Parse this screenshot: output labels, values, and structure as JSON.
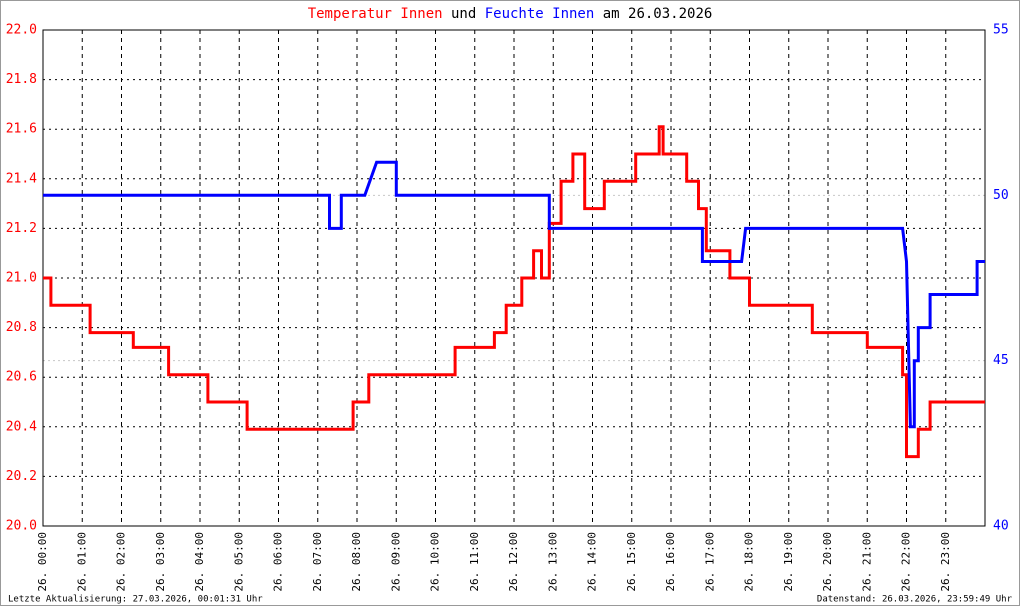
{
  "chart_data": {
    "type": "line",
    "title_join": "und",
    "title_date": "am 26.03.2026",
    "series": [
      {
        "name": "Temperatur Innen",
        "color": "#ff0000",
        "x": [
          0,
          0.2,
          0.2,
          1.2,
          1.2,
          2.3,
          2.3,
          3.2,
          3.2,
          4.2,
          4.2,
          5.2,
          5.2,
          7.9,
          7.9,
          8.3,
          8.3,
          10.5,
          10.5,
          11.5,
          11.5,
          11.8,
          11.8,
          12.2,
          12.2,
          12.5,
          12.5,
          12.7,
          12.7,
          12.9,
          12.9,
          13.2,
          13.2,
          13.5,
          13.5,
          13.8,
          13.8,
          14.3,
          14.3,
          15.1,
          15.1,
          15.7,
          15.7,
          15.8,
          15.8,
          16.4,
          16.4,
          16.7,
          16.7,
          16.9,
          16.9,
          17.5,
          17.5,
          18.0,
          18.0,
          19.6,
          19.6,
          21.0,
          21.0,
          21.9,
          21.9,
          22.0,
          22.0,
          22.3,
          22.3,
          22.6,
          22.6,
          24
        ],
        "values": [
          21.0,
          21.0,
          20.89,
          20.89,
          20.78,
          20.78,
          20.72,
          20.72,
          20.61,
          20.61,
          20.5,
          20.5,
          20.39,
          20.39,
          20.5,
          20.5,
          20.61,
          20.61,
          20.72,
          20.72,
          20.78,
          20.78,
          20.89,
          20.89,
          21.0,
          21.0,
          21.11,
          21.11,
          21.0,
          21.0,
          21.22,
          21.22,
          21.39,
          21.39,
          21.5,
          21.5,
          21.28,
          21.28,
          21.39,
          21.39,
          21.5,
          21.5,
          21.61,
          21.61,
          21.5,
          21.5,
          21.39,
          21.39,
          21.28,
          21.28,
          21.11,
          21.11,
          21.0,
          21.0,
          20.89,
          20.89,
          20.78,
          20.78,
          20.72,
          20.72,
          20.61,
          20.61,
          20.28,
          20.28,
          20.39,
          20.39,
          20.5,
          20.5
        ]
      },
      {
        "name": "Feuchte Innen",
        "color": "#0000ff",
        "axis": "y2",
        "x": [
          0,
          7.3,
          7.3,
          7.6,
          7.6,
          8.2,
          8.5,
          9.0,
          9.0,
          12.9,
          12.9,
          16.8,
          16.8,
          17.8,
          17.9,
          21.9,
          22.0,
          22.1,
          22.2,
          22.2,
          22.3,
          22.3,
          22.6,
          22.6,
          23.8,
          23.8,
          24
        ],
        "values": [
          50,
          50,
          49,
          49,
          50,
          50,
          51,
          51,
          50,
          50,
          49,
          49,
          48,
          48,
          49,
          49,
          48,
          43,
          43,
          45,
          45,
          46,
          46,
          47,
          47,
          48,
          48
        ]
      }
    ],
    "xlim": [
      0,
      24
    ],
    "xticks": [
      {
        "value": 0,
        "label": "26. 00:00"
      },
      {
        "value": 1,
        "label": "26. 01:00"
      },
      {
        "value": 2,
        "label": "26. 02:00"
      },
      {
        "value": 3,
        "label": "26. 03:00"
      },
      {
        "value": 4,
        "label": "26. 04:00"
      },
      {
        "value": 5,
        "label": "26. 05:00"
      },
      {
        "value": 6,
        "label": "26. 06:00"
      },
      {
        "value": 7,
        "label": "26. 07:00"
      },
      {
        "value": 8,
        "label": "26. 08:00"
      },
      {
        "value": 9,
        "label": "26. 09:00"
      },
      {
        "value": 10,
        "label": "26. 10:00"
      },
      {
        "value": 11,
        "label": "26. 11:00"
      },
      {
        "value": 12,
        "label": "26. 12:00"
      },
      {
        "value": 13,
        "label": "26. 13:00"
      },
      {
        "value": 14,
        "label": "26. 14:00"
      },
      {
        "value": 15,
        "label": "26. 15:00"
      },
      {
        "value": 16,
        "label": "26. 16:00"
      },
      {
        "value": 17,
        "label": "26. 17:00"
      },
      {
        "value": 18,
        "label": "26. 18:00"
      },
      {
        "value": 19,
        "label": "26. 19:00"
      },
      {
        "value": 20,
        "label": "26. 20:00"
      },
      {
        "value": 21,
        "label": "26. 21:00"
      },
      {
        "value": 22,
        "label": "26. 22:00"
      },
      {
        "value": 23,
        "label": "26. 23:00"
      }
    ],
    "ylim": [
      20,
      22
    ],
    "yticks": [
      {
        "value": 20,
        "label": "20.0"
      },
      {
        "value": 20.2,
        "label": "20.2"
      },
      {
        "value": 20.4,
        "label": "20.4"
      },
      {
        "value": 20.6,
        "label": "20.6"
      },
      {
        "value": 20.8,
        "label": "20.8"
      },
      {
        "value": 21,
        "label": "21.0"
      },
      {
        "value": 21.2,
        "label": "21.2"
      },
      {
        "value": 21.4,
        "label": "21.4"
      },
      {
        "value": 21.6,
        "label": "21.6"
      },
      {
        "value": 21.8,
        "label": "21.8"
      },
      {
        "value": 22,
        "label": "22.0"
      }
    ],
    "y2lim": [
      40,
      55
    ],
    "y2ticks": [
      40,
      45,
      50,
      55
    ],
    "grid": true
  },
  "footer": {
    "left": "Letzte Aktualisierung: 27.03.2026, 00:01:31 Uhr",
    "right": "Datenstand: 26.03.2026, 23:59:49 Uhr"
  }
}
